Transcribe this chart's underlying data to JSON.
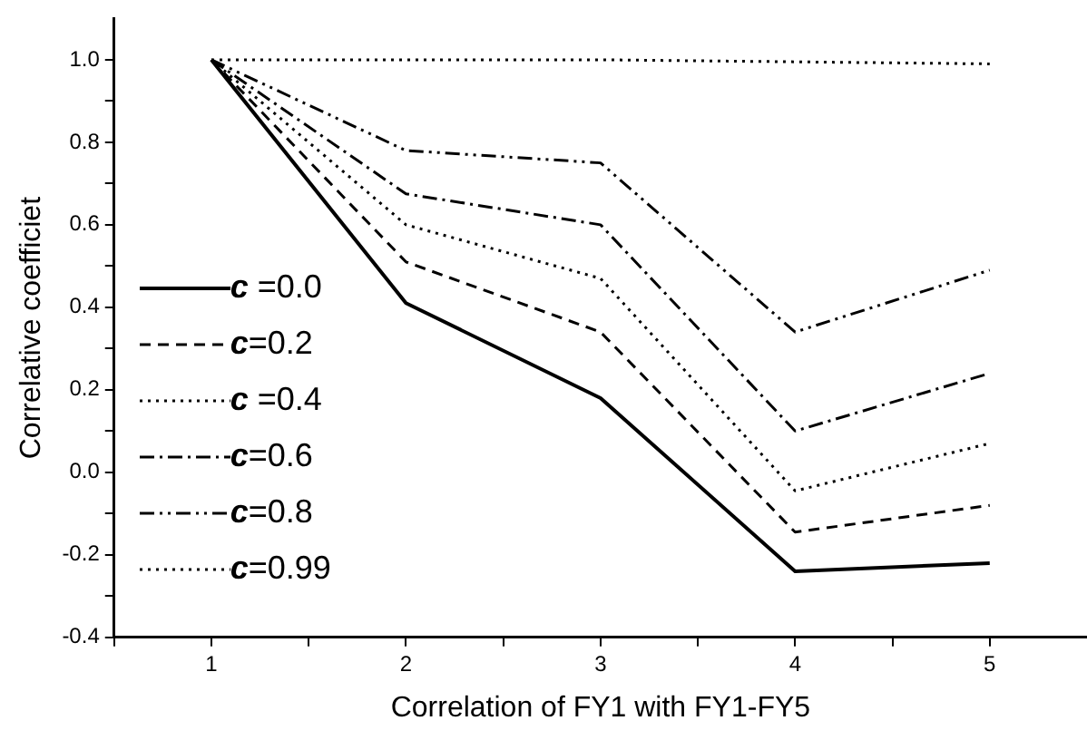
{
  "chart_data": {
    "type": "line",
    "xlabel": "Correlation of FY1 with FY1-FY5",
    "ylabel": "Correlative coefficiet",
    "x": [
      1,
      2,
      3,
      4,
      5
    ],
    "xlim": [
      0.5,
      5.5
    ],
    "xticks": [
      {
        "value": 0.5,
        "label": null
      },
      1,
      {
        "value": 1.5,
        "label": null
      },
      2,
      {
        "value": 2.5,
        "label": null
      },
      3,
      {
        "value": 3.5,
        "label": null
      },
      4,
      {
        "value": 4.5,
        "label": null
      },
      5
    ],
    "ylim": [
      -0.4,
      1.1
    ],
    "yticks": [
      {
        "value": -0.4,
        "label": "-0.4"
      },
      {
        "value": -0.3,
        "label": null
      },
      {
        "value": -0.2,
        "label": "-0.2"
      },
      {
        "value": -0.1,
        "label": null
      },
      {
        "value": 0,
        "label": "0.0"
      },
      {
        "value": 0.1,
        "label": null
      },
      {
        "value": 0.2,
        "label": "0.2"
      },
      {
        "value": 0.3,
        "label": null
      },
      {
        "value": 0.4,
        "label": "0.4"
      },
      {
        "value": 0.5,
        "label": null
      },
      {
        "value": 0.6,
        "label": "0.6"
      },
      {
        "value": 0.7,
        "label": null
      },
      {
        "value": 0.8,
        "label": "0.8"
      },
      {
        "value": 0.9,
        "label": null
      },
      {
        "value": 1.0,
        "label": "1.0"
      }
    ],
    "grid": false,
    "legend": "left",
    "marker": "none",
    "series": [
      {
        "name": "c =0.0",
        "color": "#000000",
        "line_style": "solid",
        "values": [
          1.0,
          0.41,
          0.18,
          -0.24,
          -0.22
        ]
      },
      {
        "name": "c=0.2",
        "color": "#000000",
        "line_style": "dashed",
        "values": [
          1.0,
          0.51,
          0.34,
          -0.145,
          -0.08
        ]
      },
      {
        "name": "c =0.4",
        "color": "#000000",
        "line_style": "dotted",
        "values": [
          1.0,
          0.6,
          0.47,
          -0.045,
          0.07
        ]
      },
      {
        "name": "c=0.6",
        "color": "#000000",
        "line_style": "dashdot",
        "values": [
          1.0,
          0.675,
          0.6,
          0.1,
          0.24
        ]
      },
      {
        "name": "c=0.8",
        "color": "#000000",
        "line_style": "dashdotdot",
        "values": [
          1.0,
          0.78,
          0.75,
          0.34,
          0.49
        ]
      },
      {
        "name": "c=0.99",
        "color": "#000000",
        "line_style": "dotted",
        "values": [
          1.0,
          1.0,
          1.0,
          0.995,
          0.99
        ]
      }
    ]
  }
}
